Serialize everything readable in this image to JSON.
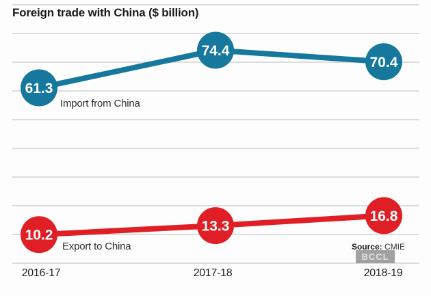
{
  "header": {
    "title": "Foreign trade with China ($ billion)"
  },
  "chart_data": {
    "type": "line",
    "title": "Foreign trade with China ($ billion)",
    "categories": [
      "2016-17",
      "2017-18",
      "2018-19"
    ],
    "series": [
      {
        "name": "Import from China",
        "values": [
          61.3,
          74.4,
          70.4
        ],
        "color": "#16789c"
      },
      {
        "name": "Export to China",
        "values": [
          10.2,
          13.3,
          16.8
        ],
        "color": "#e01e25"
      }
    ],
    "ylim": [
      0,
      90
    ],
    "xlabel": "",
    "ylabel": "$ billion",
    "grid": true,
    "data_labels": true,
    "legend_position": "inline-annotations"
  },
  "source": {
    "prefix": "Source:",
    "value": "CMIE"
  },
  "watermark": "BCCL",
  "colors": {
    "import": "#16789c",
    "export": "#e01e25",
    "grid": "#c8c8c8",
    "label_text": "#ffffff",
    "title_text": "#1b1b1b"
  }
}
